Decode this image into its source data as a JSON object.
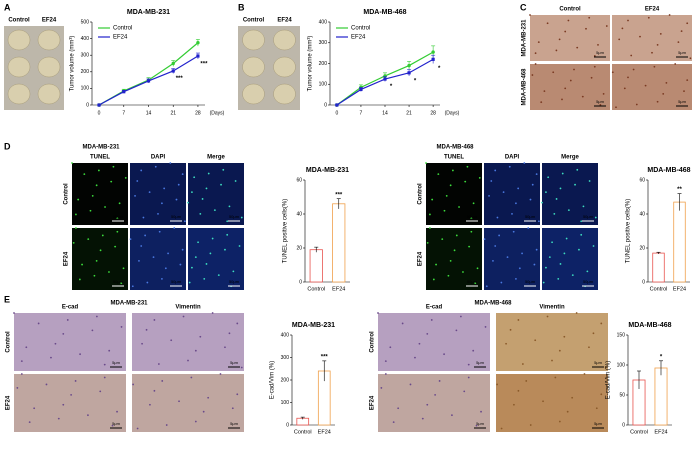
{
  "panels": [
    "A",
    "B",
    "C",
    "D",
    "E"
  ],
  "photos": [
    {
      "columns": [
        "Control",
        "EF24"
      ]
    },
    {
      "columns": [
        "Control",
        "EF24"
      ]
    }
  ],
  "ihc_c": {
    "columns": [
      "Control",
      "EF24"
    ],
    "rows": [
      "MDA-MB-231",
      "MDA-MB-468"
    ],
    "scale": "5μm"
  },
  "tunel": [
    {
      "title": "MDA-MB-231",
      "columns": [
        "TUNEL",
        "DAPI",
        "Merge"
      ],
      "rows": [
        "Control",
        "EF24"
      ],
      "scale": "50μm"
    },
    {
      "title": "MDA-MB-468",
      "columns": [
        "TUNEL",
        "DAPI",
        "Merge"
      ],
      "rows": [
        "Control",
        "EF24"
      ],
      "scale": "50μm"
    }
  ],
  "emt": [
    {
      "title": "MDA-MB-231",
      "columns": [
        "E-cad",
        "Vimentin"
      ],
      "rows": [
        "Control",
        "EF24"
      ],
      "scale": "5μm"
    },
    {
      "title": "MDA-MB-468",
      "columns": [
        "E-cad",
        "Vimentin"
      ],
      "rows": [
        "Control",
        "EF24"
      ],
      "scale": "5μm"
    }
  ],
  "chart_data": [
    {
      "type": "line",
      "title": "MDA-MB-231",
      "y_label": "Tumor volume (mm³)",
      "x_label": "(Days)",
      "x": [
        0,
        7,
        14,
        21,
        28
      ],
      "xlim": [
        -2,
        30
      ],
      "xticks": [
        0,
        7,
        14,
        21,
        28
      ],
      "ylim": [
        0,
        500
      ],
      "yticks": [
        0,
        100,
        200,
        300,
        400,
        500
      ],
      "series": [
        {
          "name": "Control",
          "color": "#33cc33",
          "values": [
            0,
            85,
            150,
            250,
            375
          ],
          "errors": [
            0,
            10,
            15,
            18,
            20
          ]
        },
        {
          "name": "EF24",
          "color": "#2222cc",
          "values": [
            0,
            80,
            145,
            205,
            295
          ],
          "errors": [
            0,
            8,
            12,
            15,
            18
          ],
          "annotations": [
            null,
            null,
            null,
            "***",
            "***"
          ]
        }
      ]
    },
    {
      "type": "line",
      "title": "MDA-MB-468",
      "y_label": "Tumor volume (mm³)",
      "x_label": "(Days)",
      "x": [
        0,
        7,
        14,
        21,
        28
      ],
      "xlim": [
        -2,
        30
      ],
      "xticks": [
        0,
        7,
        14,
        21,
        28
      ],
      "ylim": [
        0,
        400
      ],
      "yticks": [
        0,
        100,
        200,
        300,
        400
      ],
      "series": [
        {
          "name": "Control",
          "color": "#33cc33",
          "values": [
            0,
            85,
            140,
            190,
            255
          ],
          "errors": [
            0,
            12,
            15,
            20,
            30
          ]
        },
        {
          "name": "EF24",
          "color": "#2222cc",
          "values": [
            0,
            75,
            125,
            155,
            220
          ],
          "errors": [
            0,
            10,
            12,
            15,
            20
          ],
          "annotations": [
            null,
            null,
            "*",
            "*",
            "*"
          ]
        }
      ]
    },
    {
      "type": "bar",
      "title": "MDA-MB-231",
      "y_label": "TUNEL positive cells(%)",
      "categories": [
        "Control",
        "EF24"
      ],
      "values": [
        19,
        46
      ],
      "errors": [
        1.5,
        3
      ],
      "colors": [
        "#e8544f",
        "#f0a04b"
      ],
      "annotations": [
        null,
        "***"
      ],
      "ylim": [
        0,
        60
      ],
      "yticks": [
        0,
        20,
        40,
        60
      ]
    },
    {
      "type": "bar",
      "title": "MDA-MB-468",
      "y_label": "TUNEL positive cells(%)",
      "categories": [
        "Control",
        "EF24"
      ],
      "values": [
        17,
        47
      ],
      "errors": [
        0.5,
        5
      ],
      "colors": [
        "#e8544f",
        "#f0a04b"
      ],
      "annotations": [
        null,
        "**"
      ],
      "ylim": [
        0,
        60
      ],
      "yticks": [
        0,
        20,
        40,
        60
      ]
    },
    {
      "type": "bar",
      "title": "MDA-MB-231",
      "y_label": "E-cad/Vim (%)",
      "categories": [
        "Control",
        "EF24"
      ],
      "values": [
        30,
        240
      ],
      "errors": [
        5,
        45
      ],
      "colors": [
        "#e8544f",
        "#f0a04b"
      ],
      "annotations": [
        null,
        "***"
      ],
      "ylim": [
        0,
        400
      ],
      "yticks": [
        0,
        100,
        200,
        300,
        400
      ]
    },
    {
      "type": "bar",
      "title": "MDA-MB-468",
      "y_label": "E-cad/Vim (%)",
      "categories": [
        "Control",
        "EF24"
      ],
      "values": [
        75,
        95
      ],
      "errors": [
        15,
        12
      ],
      "colors": [
        "#e8544f",
        "#f0a04b"
      ],
      "annotations": [
        null,
        "*"
      ],
      "ylim": [
        0,
        150
      ],
      "yticks": [
        0,
        50,
        100,
        150
      ]
    }
  ]
}
